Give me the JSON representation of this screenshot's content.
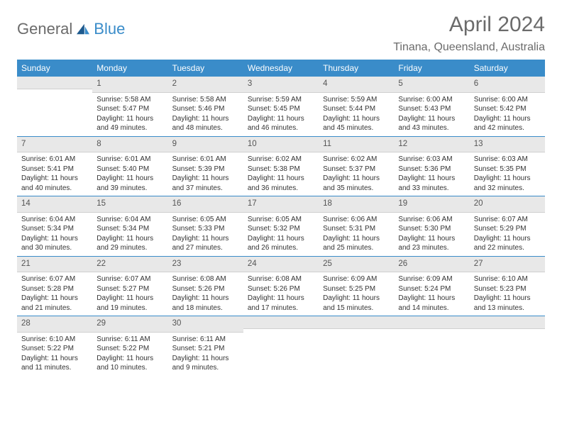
{
  "brand": {
    "general": "General",
    "blue": "Blue"
  },
  "title": "April 2024",
  "location": "Tinana, Queensland, Australia",
  "colors": {
    "header_bg": "#3a8cc9",
    "header_text": "#ffffff",
    "daynum_bg": "#e8e8e8",
    "text": "#333333",
    "week_divider": "#3a8cc9",
    "title_color": "#6b6b6b"
  },
  "weekdays": [
    "Sunday",
    "Monday",
    "Tuesday",
    "Wednesday",
    "Thursday",
    "Friday",
    "Saturday"
  ],
  "weeks": [
    [
      {
        "day": "",
        "sunrise": "",
        "sunset": "",
        "daylight": ""
      },
      {
        "day": "1",
        "sunrise": "Sunrise: 5:58 AM",
        "sunset": "Sunset: 5:47 PM",
        "daylight": "Daylight: 11 hours and 49 minutes."
      },
      {
        "day": "2",
        "sunrise": "Sunrise: 5:58 AM",
        "sunset": "Sunset: 5:46 PM",
        "daylight": "Daylight: 11 hours and 48 minutes."
      },
      {
        "day": "3",
        "sunrise": "Sunrise: 5:59 AM",
        "sunset": "Sunset: 5:45 PM",
        "daylight": "Daylight: 11 hours and 46 minutes."
      },
      {
        "day": "4",
        "sunrise": "Sunrise: 5:59 AM",
        "sunset": "Sunset: 5:44 PM",
        "daylight": "Daylight: 11 hours and 45 minutes."
      },
      {
        "day": "5",
        "sunrise": "Sunrise: 6:00 AM",
        "sunset": "Sunset: 5:43 PM",
        "daylight": "Daylight: 11 hours and 43 minutes."
      },
      {
        "day": "6",
        "sunrise": "Sunrise: 6:00 AM",
        "sunset": "Sunset: 5:42 PM",
        "daylight": "Daylight: 11 hours and 42 minutes."
      }
    ],
    [
      {
        "day": "7",
        "sunrise": "Sunrise: 6:01 AM",
        "sunset": "Sunset: 5:41 PM",
        "daylight": "Daylight: 11 hours and 40 minutes."
      },
      {
        "day": "8",
        "sunrise": "Sunrise: 6:01 AM",
        "sunset": "Sunset: 5:40 PM",
        "daylight": "Daylight: 11 hours and 39 minutes."
      },
      {
        "day": "9",
        "sunrise": "Sunrise: 6:01 AM",
        "sunset": "Sunset: 5:39 PM",
        "daylight": "Daylight: 11 hours and 37 minutes."
      },
      {
        "day": "10",
        "sunrise": "Sunrise: 6:02 AM",
        "sunset": "Sunset: 5:38 PM",
        "daylight": "Daylight: 11 hours and 36 minutes."
      },
      {
        "day": "11",
        "sunrise": "Sunrise: 6:02 AM",
        "sunset": "Sunset: 5:37 PM",
        "daylight": "Daylight: 11 hours and 35 minutes."
      },
      {
        "day": "12",
        "sunrise": "Sunrise: 6:03 AM",
        "sunset": "Sunset: 5:36 PM",
        "daylight": "Daylight: 11 hours and 33 minutes."
      },
      {
        "day": "13",
        "sunrise": "Sunrise: 6:03 AM",
        "sunset": "Sunset: 5:35 PM",
        "daylight": "Daylight: 11 hours and 32 minutes."
      }
    ],
    [
      {
        "day": "14",
        "sunrise": "Sunrise: 6:04 AM",
        "sunset": "Sunset: 5:34 PM",
        "daylight": "Daylight: 11 hours and 30 minutes."
      },
      {
        "day": "15",
        "sunrise": "Sunrise: 6:04 AM",
        "sunset": "Sunset: 5:34 PM",
        "daylight": "Daylight: 11 hours and 29 minutes."
      },
      {
        "day": "16",
        "sunrise": "Sunrise: 6:05 AM",
        "sunset": "Sunset: 5:33 PM",
        "daylight": "Daylight: 11 hours and 27 minutes."
      },
      {
        "day": "17",
        "sunrise": "Sunrise: 6:05 AM",
        "sunset": "Sunset: 5:32 PM",
        "daylight": "Daylight: 11 hours and 26 minutes."
      },
      {
        "day": "18",
        "sunrise": "Sunrise: 6:06 AM",
        "sunset": "Sunset: 5:31 PM",
        "daylight": "Daylight: 11 hours and 25 minutes."
      },
      {
        "day": "19",
        "sunrise": "Sunrise: 6:06 AM",
        "sunset": "Sunset: 5:30 PM",
        "daylight": "Daylight: 11 hours and 23 minutes."
      },
      {
        "day": "20",
        "sunrise": "Sunrise: 6:07 AM",
        "sunset": "Sunset: 5:29 PM",
        "daylight": "Daylight: 11 hours and 22 minutes."
      }
    ],
    [
      {
        "day": "21",
        "sunrise": "Sunrise: 6:07 AM",
        "sunset": "Sunset: 5:28 PM",
        "daylight": "Daylight: 11 hours and 21 minutes."
      },
      {
        "day": "22",
        "sunrise": "Sunrise: 6:07 AM",
        "sunset": "Sunset: 5:27 PM",
        "daylight": "Daylight: 11 hours and 19 minutes."
      },
      {
        "day": "23",
        "sunrise": "Sunrise: 6:08 AM",
        "sunset": "Sunset: 5:26 PM",
        "daylight": "Daylight: 11 hours and 18 minutes."
      },
      {
        "day": "24",
        "sunrise": "Sunrise: 6:08 AM",
        "sunset": "Sunset: 5:26 PM",
        "daylight": "Daylight: 11 hours and 17 minutes."
      },
      {
        "day": "25",
        "sunrise": "Sunrise: 6:09 AM",
        "sunset": "Sunset: 5:25 PM",
        "daylight": "Daylight: 11 hours and 15 minutes."
      },
      {
        "day": "26",
        "sunrise": "Sunrise: 6:09 AM",
        "sunset": "Sunset: 5:24 PM",
        "daylight": "Daylight: 11 hours and 14 minutes."
      },
      {
        "day": "27",
        "sunrise": "Sunrise: 6:10 AM",
        "sunset": "Sunset: 5:23 PM",
        "daylight": "Daylight: 11 hours and 13 minutes."
      }
    ],
    [
      {
        "day": "28",
        "sunrise": "Sunrise: 6:10 AM",
        "sunset": "Sunset: 5:22 PM",
        "daylight": "Daylight: 11 hours and 11 minutes."
      },
      {
        "day": "29",
        "sunrise": "Sunrise: 6:11 AM",
        "sunset": "Sunset: 5:22 PM",
        "daylight": "Daylight: 11 hours and 10 minutes."
      },
      {
        "day": "30",
        "sunrise": "Sunrise: 6:11 AM",
        "sunset": "Sunset: 5:21 PM",
        "daylight": "Daylight: 11 hours and 9 minutes."
      },
      {
        "day": "",
        "sunrise": "",
        "sunset": "",
        "daylight": ""
      },
      {
        "day": "",
        "sunrise": "",
        "sunset": "",
        "daylight": ""
      },
      {
        "day": "",
        "sunrise": "",
        "sunset": "",
        "daylight": ""
      },
      {
        "day": "",
        "sunrise": "",
        "sunset": "",
        "daylight": ""
      }
    ]
  ]
}
